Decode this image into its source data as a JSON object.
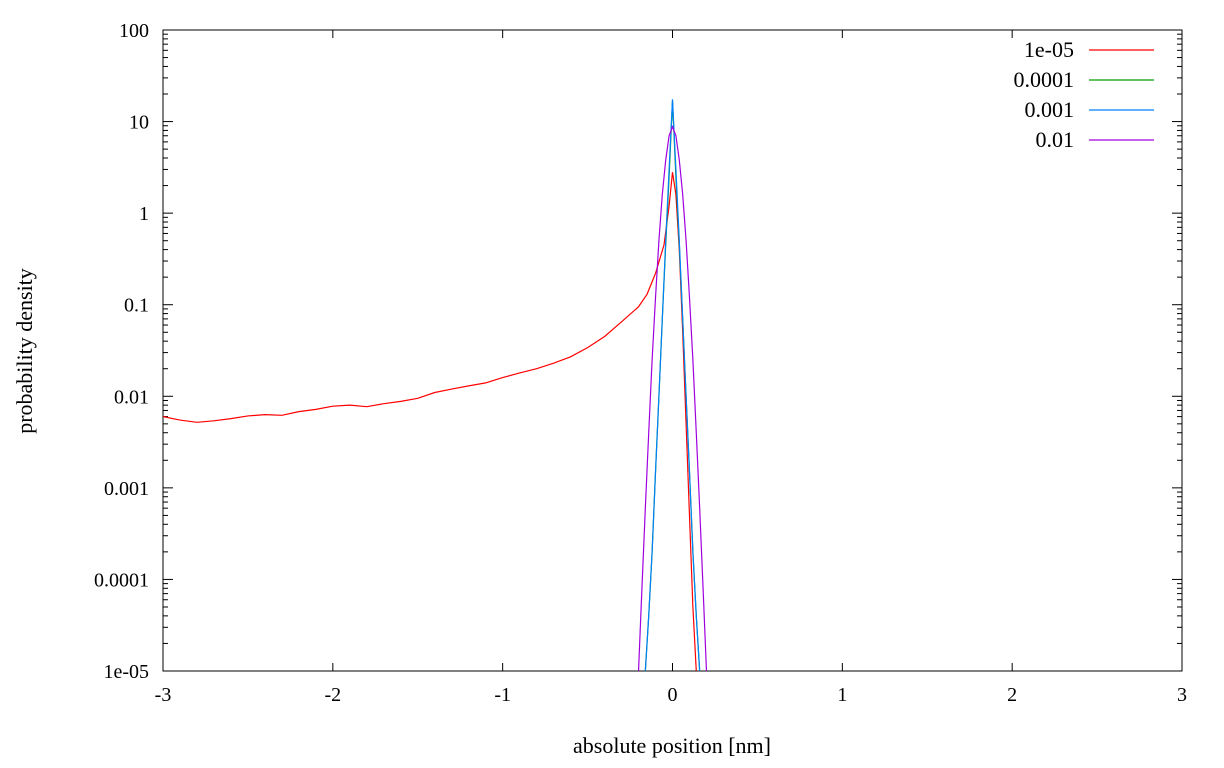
{
  "chart_data": {
    "type": "line",
    "xlabel": "absolute position [nm]",
    "ylabel": "probability density",
    "xlim": [
      -3,
      3
    ],
    "ylim": [
      1e-05,
      100
    ],
    "yscale": "log",
    "grid": false,
    "legend_position": "top-right",
    "xticks": [
      -3,
      -2,
      -1,
      0,
      1,
      2,
      3
    ],
    "xtick_labels": [
      "-3",
      "-2",
      "-1",
      "0",
      "1",
      "2",
      "3"
    ],
    "yticks": [
      1e-05,
      0.0001,
      0.001,
      0.01,
      0.1,
      1,
      10,
      100
    ],
    "ytick_labels": [
      "1e-05",
      "0.0001",
      "0.001",
      "0.01",
      "0.1",
      "1",
      "10",
      "100"
    ],
    "series": [
      {
        "name": "1e-05",
        "color": "#ff0000",
        "points": [
          [
            -3.0,
            0.006
          ],
          [
            -2.9,
            0.0055
          ],
          [
            -2.8,
            0.0052
          ],
          [
            -2.7,
            0.0054
          ],
          [
            -2.6,
            0.0057
          ],
          [
            -2.5,
            0.0061
          ],
          [
            -2.4,
            0.0063
          ],
          [
            -2.3,
            0.0062
          ],
          [
            -2.2,
            0.0068
          ],
          [
            -2.1,
            0.0072
          ],
          [
            -2.0,
            0.0078
          ],
          [
            -1.9,
            0.008
          ],
          [
            -1.8,
            0.0077
          ],
          [
            -1.7,
            0.0083
          ],
          [
            -1.6,
            0.0088
          ],
          [
            -1.5,
            0.0095
          ],
          [
            -1.4,
            0.011
          ],
          [
            -1.3,
            0.012
          ],
          [
            -1.2,
            0.013
          ],
          [
            -1.1,
            0.014
          ],
          [
            -1.0,
            0.016
          ],
          [
            -0.9,
            0.018
          ],
          [
            -0.8,
            0.02
          ],
          [
            -0.7,
            0.023
          ],
          [
            -0.6,
            0.027
          ],
          [
            -0.5,
            0.034
          ],
          [
            -0.4,
            0.045
          ],
          [
            -0.3,
            0.065
          ],
          [
            -0.2,
            0.095
          ],
          [
            -0.15,
            0.13
          ],
          [
            -0.1,
            0.22
          ],
          [
            -0.05,
            0.45
          ],
          [
            -0.02,
            1.2
          ],
          [
            0.0,
            2.8
          ],
          [
            0.02,
            1.6
          ],
          [
            0.04,
            0.4
          ],
          [
            0.06,
            0.05
          ],
          [
            0.08,
            0.005
          ],
          [
            0.1,
            0.0005
          ],
          [
            0.12,
            5e-05
          ],
          [
            0.14,
            1e-05
          ]
        ]
      },
      {
        "name": "0.0001",
        "color": "#00a000",
        "points": [
          [
            -0.16,
            1e-05
          ],
          [
            -0.14,
            4e-05
          ],
          [
            -0.12,
            0.0002
          ],
          [
            -0.1,
            0.0015
          ],
          [
            -0.08,
            0.01
          ],
          [
            -0.06,
            0.07
          ],
          [
            -0.04,
            0.45
          ],
          [
            -0.02,
            2.5
          ],
          [
            0.0,
            17
          ],
          [
            0.02,
            2.5
          ],
          [
            0.04,
            0.45
          ],
          [
            0.06,
            0.07
          ],
          [
            0.08,
            0.01
          ],
          [
            0.1,
            0.0015
          ],
          [
            0.12,
            0.0002
          ],
          [
            0.14,
            4e-05
          ],
          [
            0.16,
            1e-05
          ]
        ]
      },
      {
        "name": "0.001",
        "color": "#0080ff",
        "points": [
          [
            -0.16,
            1e-05
          ],
          [
            -0.14,
            4e-05
          ],
          [
            -0.12,
            0.0002
          ],
          [
            -0.1,
            0.0015
          ],
          [
            -0.08,
            0.01
          ],
          [
            -0.06,
            0.07
          ],
          [
            -0.04,
            0.5
          ],
          [
            -0.02,
            3.0
          ],
          [
            0.0,
            17.5
          ],
          [
            0.02,
            3.0
          ],
          [
            0.04,
            0.5
          ],
          [
            0.06,
            0.07
          ],
          [
            0.08,
            0.01
          ],
          [
            0.1,
            0.0015
          ],
          [
            0.12,
            0.0002
          ],
          [
            0.14,
            4e-05
          ],
          [
            0.16,
            1e-05
          ]
        ]
      },
      {
        "name": "0.01",
        "color": "#a000e0",
        "points": [
          [
            -0.2,
            1e-05
          ],
          [
            -0.18,
            8e-05
          ],
          [
            -0.16,
            0.0006
          ],
          [
            -0.14,
            0.004
          ],
          [
            -0.12,
            0.025
          ],
          [
            -0.1,
            0.12
          ],
          [
            -0.08,
            0.5
          ],
          [
            -0.06,
            1.6
          ],
          [
            -0.04,
            3.8
          ],
          [
            -0.02,
            7.0
          ],
          [
            0.0,
            8.8
          ],
          [
            0.02,
            7.0
          ],
          [
            0.04,
            3.8
          ],
          [
            0.06,
            1.6
          ],
          [
            0.08,
            0.5
          ],
          [
            0.1,
            0.12
          ],
          [
            0.12,
            0.025
          ],
          [
            0.14,
            0.004
          ],
          [
            0.16,
            0.0006
          ],
          [
            0.18,
            8e-05
          ],
          [
            0.2,
            1e-05
          ]
        ]
      }
    ]
  }
}
